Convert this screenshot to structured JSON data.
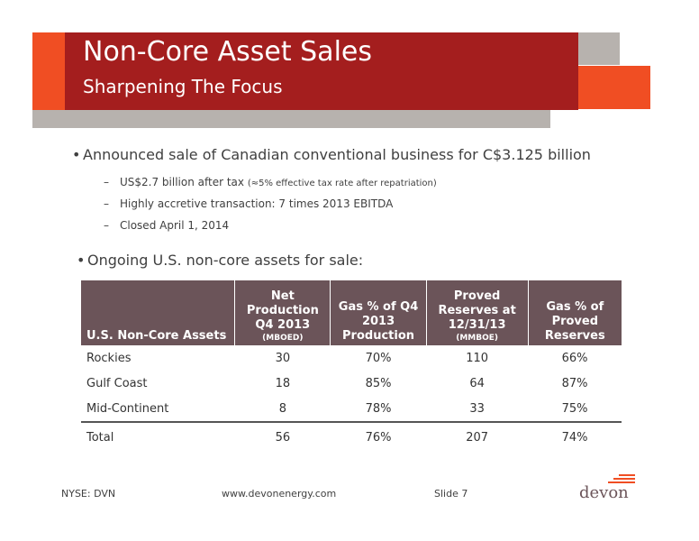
{
  "header": {
    "title": "Non-Core Asset Sales",
    "subtitle": "Sharpening The Focus"
  },
  "bullets": [
    {
      "text": "Announced sale of Canadian conventional business for C$3.125 billion",
      "subs": [
        {
          "text": "US$2.7 billion after tax ",
          "note": "(≈5% effective tax rate after repatriation)"
        },
        {
          "text": "Highly accretive transaction: 7 times 2013 EBITDA",
          "note": ""
        },
        {
          "text": "Closed April 1, 2014",
          "note": ""
        }
      ]
    },
    {
      "text": "Ongoing U.S. non-core assets for sale:"
    }
  ],
  "table": {
    "headers": [
      {
        "label": "U.S. Non-Core Assets",
        "unit": ""
      },
      {
        "label": "Net Production Q4 2013",
        "unit": "(MBOED)"
      },
      {
        "label": "Gas % of Q4 2013 Production",
        "unit": ""
      },
      {
        "label": "Proved Reserves at 12/31/13",
        "unit": "(MMBOE)"
      },
      {
        "label": "Gas % of Proved Reserves",
        "unit": ""
      }
    ],
    "rows": [
      [
        "Rockies",
        "30",
        "70%",
        "110",
        "66%"
      ],
      [
        "Gulf Coast",
        "18",
        "85%",
        "64",
        "87%"
      ],
      [
        "Mid-Continent",
        "8",
        "78%",
        "33",
        "75%"
      ]
    ],
    "total": [
      "Total",
      "56",
      "76%",
      "207",
      "74%"
    ]
  },
  "footer": {
    "ticker": "NYSE: DVN",
    "website": "www.devonenergy.com",
    "slide": "Slide 7",
    "logo": "devon"
  },
  "colors": {
    "title_red": "#a41e1e",
    "accent_orange": "#f04e23",
    "gray": "#b7b2ae",
    "table_header": "#6b5459"
  }
}
